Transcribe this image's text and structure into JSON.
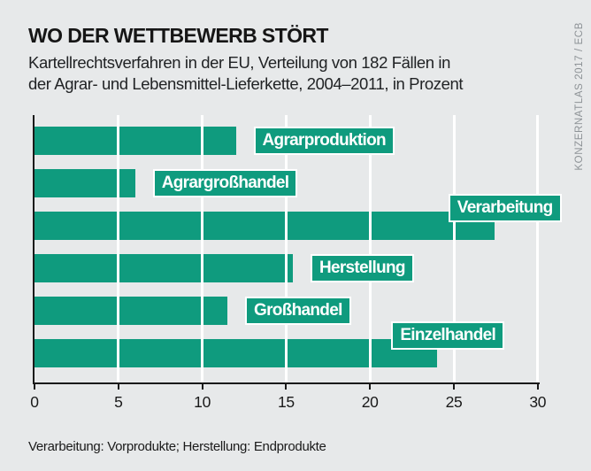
{
  "header": {
    "title": "WO DER WETTBEWERB STÖRT",
    "subtitle_lines": [
      "Kartellrechtsverfahren in der EU, Verteilung von 182 Fällen in",
      "der Agrar- und Lebensmittel-Lieferkette, 2004–2011, in Prozent"
    ]
  },
  "credit": "KONZERNATLAS 2017 / ECB",
  "footnote": "Verarbeitung: Vorprodukte; Herstellung: Endprodukte",
  "chart_data": {
    "type": "bar",
    "orientation": "horizontal",
    "title": "WO DER WETTBEWERB STÖRT",
    "subtitle": "Kartellrechtsverfahren in der EU, Verteilung von 182 Fällen in der Agrar- und Lebensmittel-Lieferkette, 2004–2011, in Prozent",
    "categories": [
      "Agrarproduktion",
      "Agrargroßhandel",
      "Verarbeitung",
      "Herstellung",
      "Großhandel",
      "Einzelhandel"
    ],
    "values": [
      12,
      6,
      27.4,
      15.4,
      11.5,
      24
    ],
    "unit": "Prozent",
    "xlabel": "",
    "ylabel": "",
    "xlim": [
      0,
      30
    ],
    "x_ticks": [
      0,
      5,
      10,
      15,
      20,
      25,
      30
    ],
    "grid": true,
    "legend": "none",
    "label_style": [
      "right",
      "right",
      "above",
      "right",
      "right",
      "above"
    ],
    "colors": {
      "bar": "#0f9b7e",
      "background": "#e7e9ea",
      "gridline": "#ffffff",
      "axis": "#1a1a1a",
      "label_box": "#0f9b7e",
      "label_text": "#ffffff",
      "credit_text": "#8d9296"
    }
  }
}
